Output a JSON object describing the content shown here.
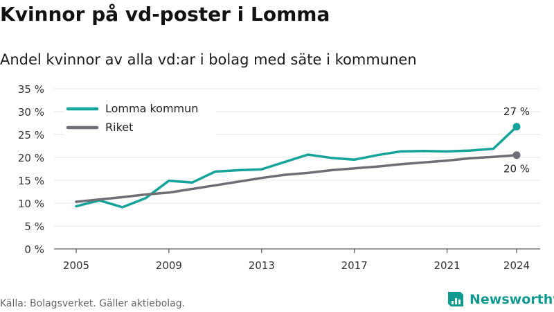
{
  "title": "Kvinnor på vd-poster i Lomma",
  "subtitle": "Andel kvinnor av alla vd:ar i bolag med säte i kommunen",
  "source": "Källa: Bolagsverket. Gäller aktiebolag.",
  "brand": {
    "name": "Newsworthy",
    "icon": "newsworthy-logo-icon",
    "color": "#10998f"
  },
  "chart_data": {
    "type": "line",
    "title": "Kvinnor på vd-poster i Lomma",
    "subtitle": "Andel kvinnor av alla vd:ar i bolag med säte i kommunen",
    "x": [
      2005,
      2006,
      2007,
      2008,
      2009,
      2010,
      2011,
      2012,
      2013,
      2014,
      2015,
      2016,
      2017,
      2018,
      2019,
      2020,
      2021,
      2022,
      2023,
      2024
    ],
    "x_ticks": [
      "2005",
      "2009",
      "2013",
      "2017",
      "2021",
      "2024"
    ],
    "y_ticks": [
      "0 %",
      "5 %",
      "10 %",
      "15 %",
      "20 %",
      "25 %",
      "30 %",
      "35 %"
    ],
    "ylim": [
      0,
      35
    ],
    "grid": true,
    "legend_position": "top-left",
    "series": [
      {
        "name": "Lomma kommun",
        "color": "#16a39a",
        "values": [
          9.3,
          10.6,
          9.1,
          11.1,
          14.9,
          14.5,
          16.9,
          17.2,
          17.4,
          19.0,
          20.6,
          19.9,
          19.5,
          20.5,
          21.3,
          21.4,
          21.3,
          21.5,
          21.9,
          26.7
        ],
        "end_label": "27 %"
      },
      {
        "name": "Riket",
        "color": "#6f6e74",
        "values": [
          10.3,
          10.8,
          11.3,
          11.9,
          12.3,
          13.1,
          13.9,
          14.7,
          15.5,
          16.2,
          16.6,
          17.2,
          17.6,
          18.0,
          18.5,
          18.9,
          19.3,
          19.8,
          20.1,
          20.5
        ],
        "end_label": "20 %"
      }
    ]
  }
}
